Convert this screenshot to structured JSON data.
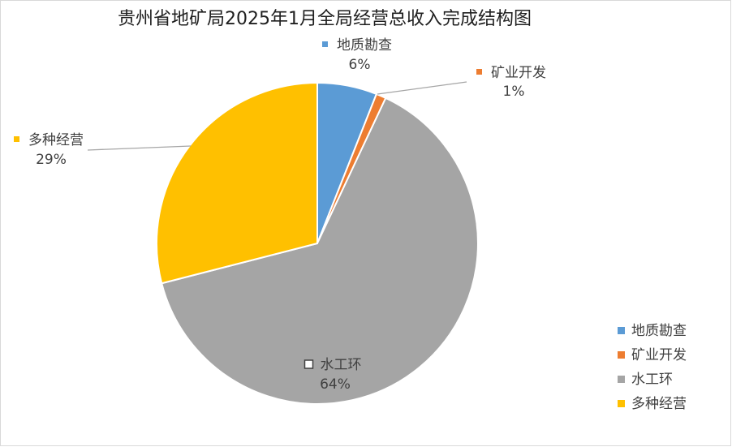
{
  "chart_data": {
    "type": "pie",
    "title": "贵州省地矿局2025年1月全局经营总收入完成结构图",
    "categories": [
      "地质勘查",
      "矿业开发",
      "水工环",
      "多种经营"
    ],
    "values": [
      6,
      1,
      64,
      29
    ],
    "value_labels": [
      "6%",
      "1%",
      "64%",
      "29%"
    ],
    "colors": [
      "#5b9bd5",
      "#ed7d31",
      "#a5a5a5",
      "#ffc000"
    ],
    "legend": "right"
  }
}
